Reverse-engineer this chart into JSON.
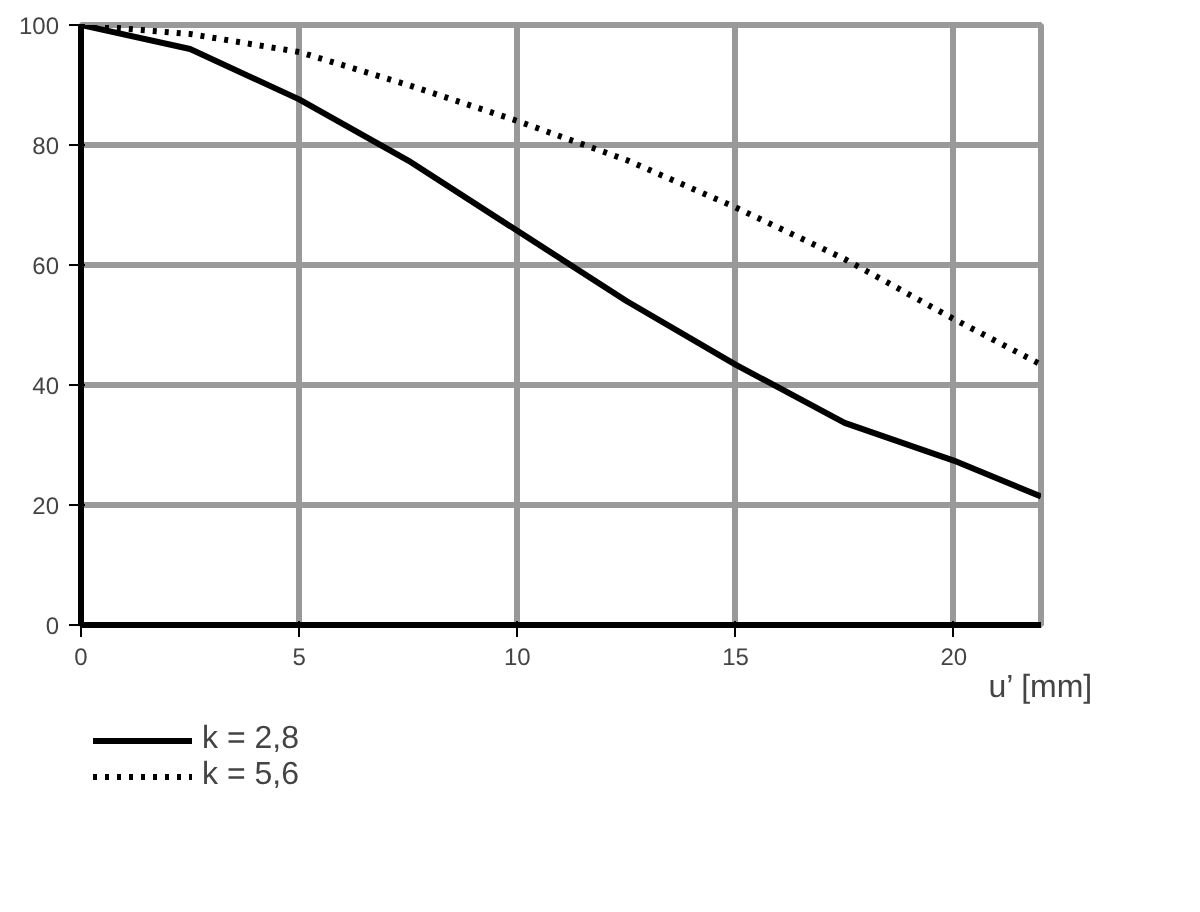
{
  "chart_data": {
    "type": "line",
    "xlabel": "u’ [mm]",
    "x": [
      0,
      2.5,
      5,
      7.5,
      10,
      12.5,
      15,
      17.5,
      20,
      22
    ],
    "series": [
      {
        "name": "k = 2,8",
        "color": "#000000",
        "line_style": "solid",
        "values": [
          100,
          96,
          87.6,
          77.4,
          65.7,
          54,
          43.4,
          33.7,
          27.4,
          21.4
        ]
      },
      {
        "name": "k = 5,6",
        "color": "#000000",
        "line_style": "dotted",
        "values": [
          100,
          98.5,
          95.5,
          90,
          84,
          77.5,
          69.6,
          61,
          51,
          43.4
        ]
      }
    ],
    "xlim": [
      0,
      22
    ],
    "ylim": [
      0,
      100
    ],
    "xticks": [
      0,
      5,
      10,
      15,
      20
    ],
    "yticks": [
      0,
      20,
      40,
      60,
      80,
      100
    ],
    "grid": true,
    "legend": "bottom left",
    "marker": "none"
  }
}
